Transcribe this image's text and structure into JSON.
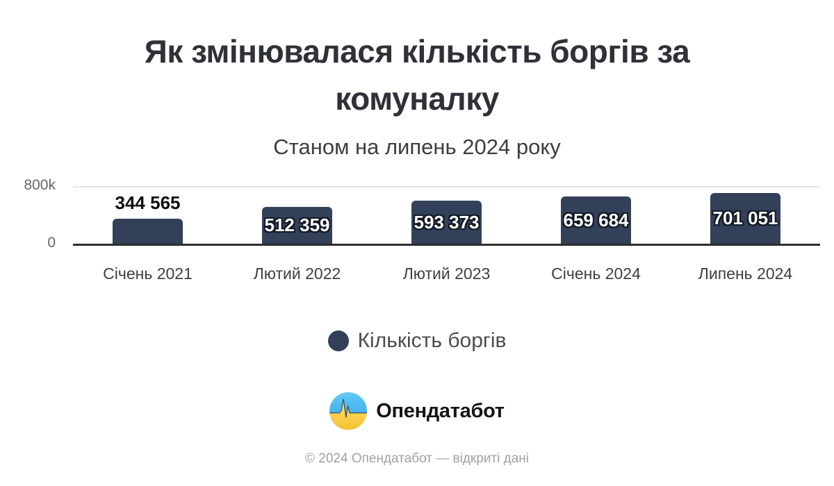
{
  "header": {
    "title_line1": "Як змінювалася кількість боргів за",
    "title_line2": "комуналку",
    "subtitle": "Станом на липень 2024 року"
  },
  "chart_data": {
    "type": "bar",
    "title": "Як змінювалася кількість боргів за комуналку",
    "subtitle": "Станом на липень 2024 року",
    "categories": [
      "Січень 2021",
      "Лютий 2022",
      "Лютий 2023",
      "Січень 2024",
      "Липень 2024"
    ],
    "series": [
      {
        "name": "Кількість боргів",
        "values": [
          344565,
          512359,
          593373,
          659684,
          701051
        ]
      }
    ],
    "value_labels": [
      "344 565",
      "512 359",
      "593 373",
      "659 684",
      "701 051"
    ],
    "xlabel": "",
    "ylabel": "",
    "ylim": [
      0,
      800000
    ],
    "yticks": [
      {
        "value": 0,
        "label": "0"
      },
      {
        "value": 800000,
        "label": "800k"
      }
    ],
    "grid": "single horizontal gridline at 800k; solid dark baseline at 0",
    "legend_position": "bottom-center",
    "bar_color": "#334059",
    "value_label_style": "first bar: dark label above bar; other bars: white label with dark outline inside bar"
  },
  "legend": {
    "label": "Кількість боргів",
    "marker_color": "#334059"
  },
  "footer": {
    "brand_name": "Опендатабот",
    "copyright": "© 2024 Опендатабот — відкриті дані"
  },
  "colors": {
    "background": "#ffffff",
    "bar": "#334059",
    "title_text": "#2f3138",
    "subtitle_text": "#3d3d3d",
    "axis_line": "#2d2d2d",
    "gridline": "#e4e4e4",
    "axis_tick_text": "#666666",
    "category_text": "#3f3f3f",
    "value_inside_text": "#ffffff",
    "value_inside_outline": "#141a26",
    "value_outside_text": "#0d0d0d",
    "legend_text": "#4c4c4c",
    "copyright_text": "#a0a0a0",
    "logo_blue": "#3aa9ea",
    "logo_yellow": "#fbc93e"
  }
}
